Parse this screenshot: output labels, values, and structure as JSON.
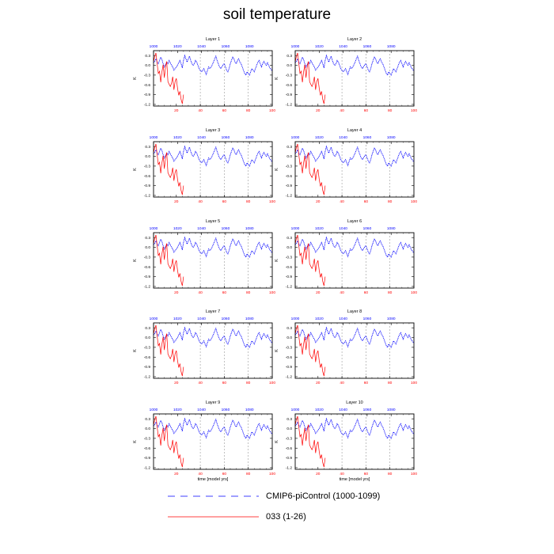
{
  "title": "soil temperature",
  "colors": {
    "control": "#0000ff",
    "experiment": "#ff0000",
    "grid": "#999999",
    "axis": "#000000"
  },
  "legend": {
    "items": [
      {
        "label": "CMIP6-piControl (1000-1099)",
        "style": "dashed",
        "color": "#0000ff"
      },
      {
        "label": "033 (1-26)",
        "style": "solid",
        "color": "#ff0000"
      }
    ]
  },
  "chart_data": {
    "type": "line",
    "panels": [
      "Layer 1",
      "Layer 2",
      "Layer 3",
      "Layer 4",
      "Layer 5",
      "Layer 6",
      "Layer 7",
      "Layer 8",
      "Layer 9",
      "Layer 10"
    ],
    "ylabel": "K",
    "xlabel": "time [model yrs]",
    "ylim": [
      -1.25,
      0.45
    ],
    "yticks": [
      "0.3",
      "0.0",
      "-0.3",
      "-0.6",
      "-0.9",
      "-1.2"
    ],
    "bottom_axis": {
      "range": [
        1,
        100
      ],
      "ticks": [
        "20",
        "40",
        "60",
        "80",
        "100"
      ],
      "color": "#ff0000"
    },
    "top_axis": {
      "range": [
        1000,
        1099
      ],
      "ticks": [
        "1000",
        "1020",
        "1040",
        "1060",
        "1080"
      ],
      "color": "#0000ff"
    },
    "grid": "vertical dashed at 40, 60, 80",
    "series": [
      {
        "name": "CMIP6-piControl (1000-1099)",
        "x_start": 1000,
        "values": [
          0.08,
          0.12,
          0.2,
          0.1,
          0.05,
          0.15,
          0.25,
          0.18,
          0.05,
          -0.05,
          0.02,
          0.1,
          0.05,
          0.15,
          0.08,
          0.0,
          -0.05,
          -0.15,
          -0.1,
          -0.05,
          0.0,
          0.08,
          0.15,
          0.05,
          -0.08,
          0.15,
          0.3,
          0.2,
          0.1,
          0.2,
          0.28,
          0.15,
          0.05,
          0.0,
          0.05,
          0.15,
          0.1,
          0.0,
          -0.1,
          -0.15,
          -0.2,
          -0.15,
          -0.1,
          -0.2,
          -0.28,
          -0.15,
          -0.05,
          -0.1,
          -0.05,
          0.02,
          0.1,
          0.2,
          0.28,
          0.15,
          0.05,
          -0.05,
          -0.1,
          -0.05,
          0.02,
          0.05,
          -0.05,
          -0.15,
          -0.2,
          -0.1,
          0.05,
          0.15,
          0.25,
          0.2,
          0.1,
          0.05,
          0.15,
          0.2,
          0.1,
          0.05,
          -0.05,
          -0.15,
          -0.25,
          -0.3,
          -0.2,
          -0.25,
          -0.3,
          -0.2,
          -0.1,
          -0.15,
          -0.2,
          -0.1,
          0.0,
          0.1,
          0.15,
          0.05,
          -0.05,
          0.05,
          0.12,
          0.05,
          0.0,
          0.08,
          0.0,
          -0.08,
          -0.12,
          -0.18
        ]
      },
      {
        "name": "033 (1-26)",
        "x_start": 1,
        "values": [
          0.1,
          0.28,
          0.38,
          0.05,
          -0.25,
          -0.18,
          -0.52,
          -0.2,
          0.02,
          -0.38,
          -0.05,
          0.12,
          -0.5,
          -0.58,
          -0.65,
          -0.55,
          -0.35,
          -0.75,
          -0.5,
          -0.4,
          -0.7,
          -0.92,
          -0.8,
          -1.05,
          -1.18,
          -0.9
        ]
      }
    ]
  }
}
